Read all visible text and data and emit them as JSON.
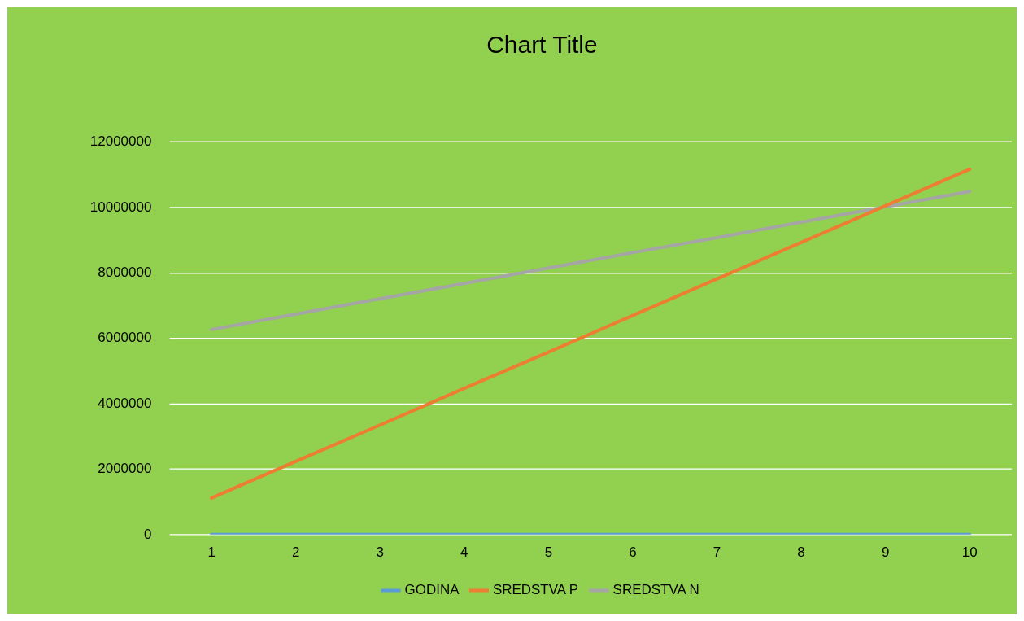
{
  "chart_data": {
    "type": "line",
    "title": "Chart Title",
    "categories": [
      "1",
      "2",
      "3",
      "4",
      "5",
      "6",
      "7",
      "8",
      "9",
      "10"
    ],
    "series": [
      {
        "name": "GODINA",
        "color": "#5b9bd5",
        "values": [
          0,
          0,
          0,
          0,
          0,
          0,
          0,
          0,
          0,
          0
        ]
      },
      {
        "name": "SREDSTVA P",
        "color": "#ed7d31",
        "values": [
          1120000,
          2240000,
          3350000,
          4470000,
          5580000,
          6700000,
          7820000,
          8930000,
          10050000,
          11170000
        ]
      },
      {
        "name": "SREDSTVA N",
        "color": "#a5a5a5",
        "values": [
          6270000,
          6740000,
          7210000,
          7680000,
          8150000,
          8620000,
          9080000,
          9550000,
          10020000,
          10490000
        ]
      }
    ],
    "ylim": [
      0,
      12000000
    ],
    "yticks": [
      0,
      2000000,
      4000000,
      6000000,
      8000000,
      10000000,
      12000000
    ],
    "grid": "y",
    "legend": "bottom",
    "marker": "none",
    "line_style": "solid"
  }
}
